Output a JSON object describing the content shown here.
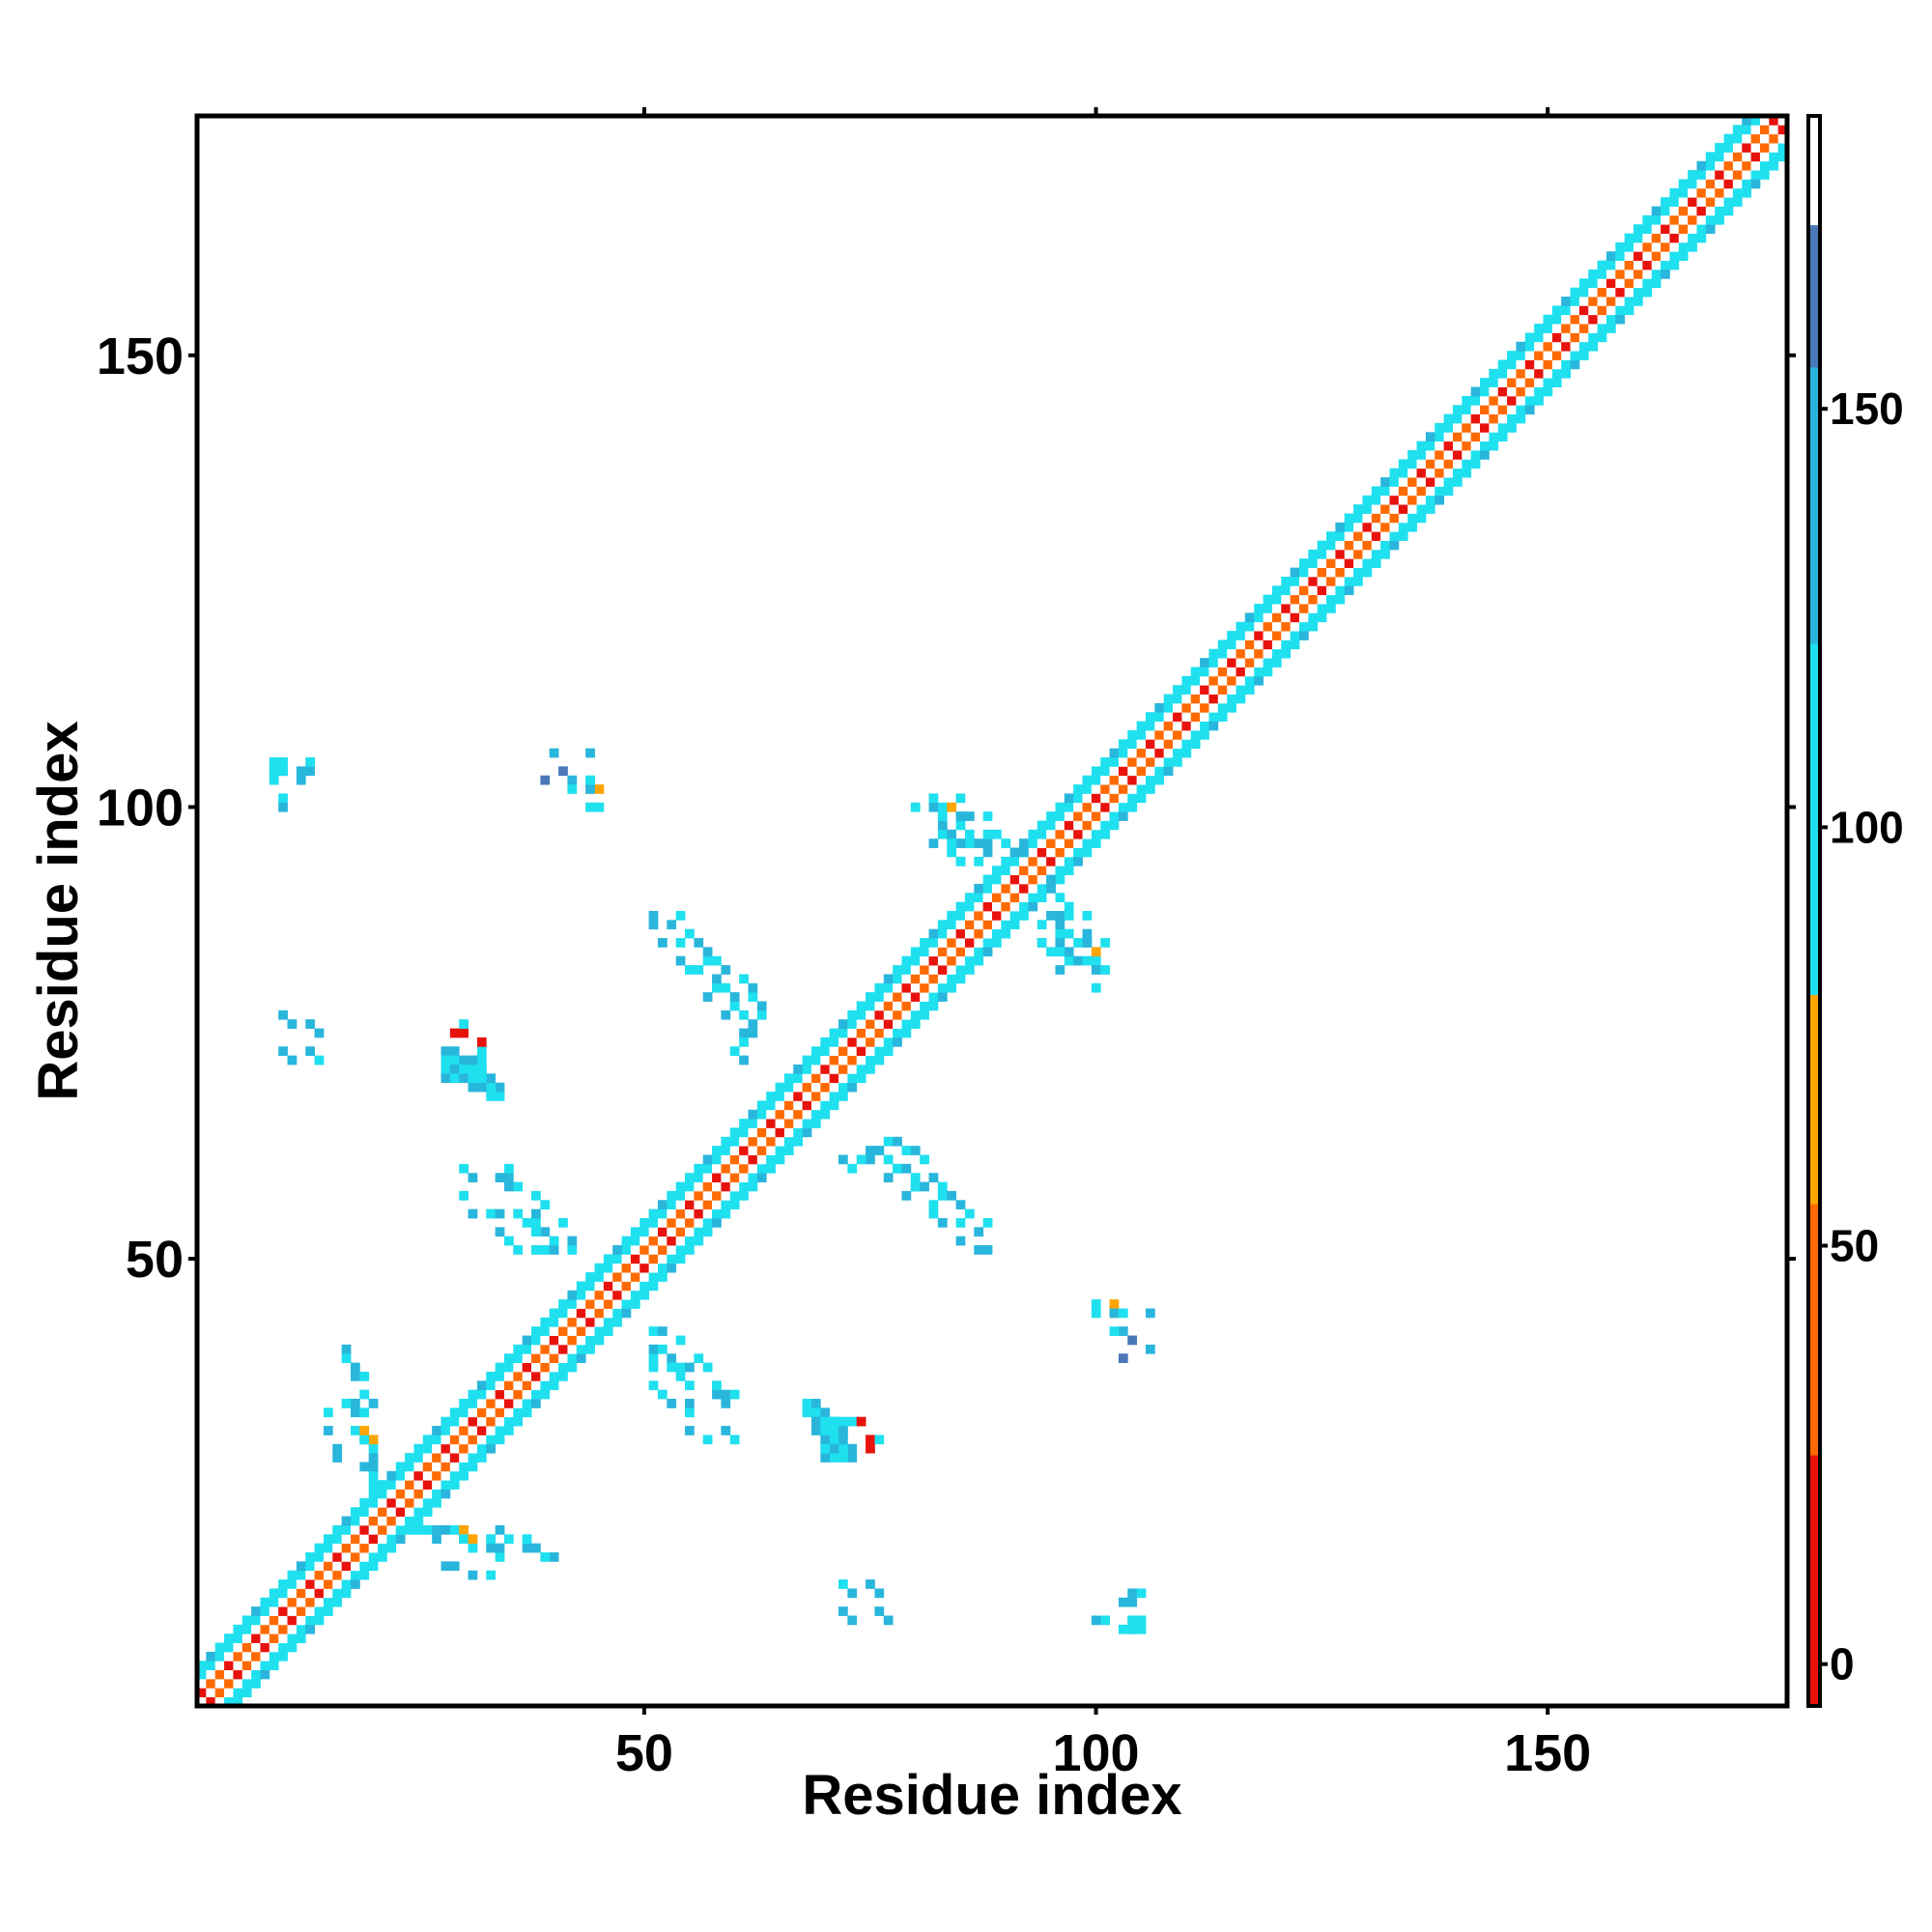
{
  "chart_data": {
    "type": "heatmap",
    "title": "",
    "xlabel": "Residue index",
    "ylabel": "Residue index",
    "xlim": [
      1,
      176
    ],
    "ylim": [
      1,
      176
    ],
    "xticks": [
      50,
      100,
      150
    ],
    "yticks": [
      50,
      100,
      150
    ],
    "xtick_labels": [
      "50",
      "100",
      "150"
    ],
    "ytick_labels": [
      "50",
      "100",
      "150"
    ],
    "grid": false,
    "legend": "none",
    "colorbar": {
      "position": "right",
      "range": [
        -5,
        185
      ],
      "ticks": [
        0,
        50,
        100,
        150
      ],
      "tick_labels": [
        "0",
        "50",
        "100",
        "150"
      ],
      "bins": [
        {
          "from": -5,
          "to": 25,
          "color": "#e8120c"
        },
        {
          "from": 25,
          "to": 55,
          "color": "#ff6a00"
        },
        {
          "from": 55,
          "to": 80,
          "color": "#ffa500"
        },
        {
          "from": 80,
          "to": 122,
          "color": "#1fe0ee"
        },
        {
          "from": 122,
          "to": 155,
          "color": "#29b6dc"
        },
        {
          "from": 155,
          "to": 172,
          "color": "#4a78b8"
        },
        {
          "from": 172,
          "to": 185,
          "color": "#ffffff"
        }
      ]
    },
    "description_of_values": "contact map cells colored by value",
    "diagonal_band": {
      "half_width": 4,
      "from": 1,
      "to": 176
    },
    "off_diagonal_cells": [
      {
        "x": 9,
        "y": 104,
        "v": 100
      },
      {
        "x": 10,
        "y": 104,
        "v": 140
      },
      {
        "x": 9,
        "y": 103,
        "v": 100
      },
      {
        "x": 12,
        "y": 104,
        "v": 140
      },
      {
        "x": 12,
        "y": 103,
        "v": 140
      },
      {
        "x": 10,
        "y": 101,
        "v": 100
      },
      {
        "x": 40,
        "y": 106,
        "v": 140
      },
      {
        "x": 39,
        "y": 103,
        "v": 160
      },
      {
        "x": 42,
        "y": 103,
        "v": 140
      },
      {
        "x": 42,
        "y": 102,
        "v": 100
      },
      {
        "x": 44,
        "y": 102,
        "v": 65
      },
      {
        "x": 44,
        "y": 100,
        "v": 100
      },
      {
        "x": 10,
        "y": 77,
        "v": 140
      },
      {
        "x": 13,
        "y": 76,
        "v": 140
      },
      {
        "x": 10,
        "y": 73,
        "v": 140
      },
      {
        "x": 13,
        "y": 73,
        "v": 140
      },
      {
        "x": 29,
        "y": 75,
        "v": 10
      },
      {
        "x": 30,
        "y": 75,
        "v": 10
      },
      {
        "x": 30,
        "y": 76,
        "v": 100
      },
      {
        "x": 28,
        "y": 73,
        "v": 140
      },
      {
        "x": 29,
        "y": 73,
        "v": 140
      },
      {
        "x": 28,
        "y": 72,
        "v": 100
      },
      {
        "x": 29,
        "y": 72,
        "v": 100
      },
      {
        "x": 30,
        "y": 72,
        "v": 140
      },
      {
        "x": 31,
        "y": 72,
        "v": 100
      },
      {
        "x": 28,
        "y": 71,
        "v": 100
      },
      {
        "x": 29,
        "y": 71,
        "v": 140
      },
      {
        "x": 30,
        "y": 71,
        "v": 100
      },
      {
        "x": 31,
        "y": 71,
        "v": 100
      },
      {
        "x": 32,
        "y": 71,
        "v": 140
      },
      {
        "x": 28,
        "y": 70,
        "v": 140
      },
      {
        "x": 29,
        "y": 70,
        "v": 100
      },
      {
        "x": 30,
        "y": 70,
        "v": 140
      },
      {
        "x": 32,
        "y": 70,
        "v": 100
      },
      {
        "x": 31,
        "y": 69,
        "v": 140
      },
      {
        "x": 32,
        "y": 69,
        "v": 140
      },
      {
        "x": 30,
        "y": 60,
        "v": 100
      },
      {
        "x": 31,
        "y": 59,
        "v": 140
      },
      {
        "x": 34,
        "y": 59,
        "v": 140
      },
      {
        "x": 35,
        "y": 59,
        "v": 140
      },
      {
        "x": 30,
        "y": 57,
        "v": 100
      },
      {
        "x": 31,
        "y": 55,
        "v": 140
      },
      {
        "x": 33,
        "y": 55,
        "v": 100
      },
      {
        "x": 34,
        "y": 55,
        "v": 140
      },
      {
        "x": 37,
        "y": 54,
        "v": 100
      },
      {
        "x": 34,
        "y": 53,
        "v": 140
      },
      {
        "x": 35,
        "y": 52,
        "v": 100
      },
      {
        "x": 36,
        "y": 51,
        "v": 100
      },
      {
        "x": 38,
        "y": 51,
        "v": 100
      },
      {
        "x": 39,
        "y": 51,
        "v": 100
      },
      {
        "x": 53,
        "y": 87,
        "v": 140
      },
      {
        "x": 54,
        "y": 85,
        "v": 100
      },
      {
        "x": 58,
        "y": 83,
        "v": 100
      },
      {
        "x": 55,
        "y": 82,
        "v": 100
      },
      {
        "x": 56,
        "y": 82,
        "v": 100
      },
      {
        "x": 54,
        "y": 83,
        "v": 140
      },
      {
        "x": 58,
        "y": 80,
        "v": 140
      },
      {
        "x": 59,
        "y": 80,
        "v": 100
      },
      {
        "x": 57,
        "y": 79,
        "v": 140
      },
      {
        "x": 60,
        "y": 78,
        "v": 100
      },
      {
        "x": 59,
        "y": 77,
        "v": 140
      },
      {
        "x": 61,
        "y": 77,
        "v": 100
      },
      {
        "x": 62,
        "y": 76,
        "v": 140
      },
      {
        "x": 61,
        "y": 75,
        "v": 140
      },
      {
        "x": 62,
        "y": 75,
        "v": 140
      },
      {
        "x": 61,
        "y": 74,
        "v": 100
      },
      {
        "x": 77,
        "y": 63,
        "v": 100
      },
      {
        "x": 78,
        "y": 63,
        "v": 140
      },
      {
        "x": 79,
        "y": 62,
        "v": 100
      },
      {
        "x": 80,
        "y": 62,
        "v": 140
      },
      {
        "x": 81,
        "y": 61,
        "v": 100
      },
      {
        "x": 78,
        "y": 60,
        "v": 100
      },
      {
        "x": 79,
        "y": 60,
        "v": 140
      },
      {
        "x": 82,
        "y": 59,
        "v": 140
      },
      {
        "x": 80,
        "y": 58,
        "v": 100
      },
      {
        "x": 81,
        "y": 58,
        "v": 140
      },
      {
        "x": 83,
        "y": 57,
        "v": 100
      },
      {
        "x": 84,
        "y": 57,
        "v": 140
      },
      {
        "x": 85,
        "y": 56,
        "v": 140
      },
      {
        "x": 86,
        "y": 55,
        "v": 100
      },
      {
        "x": 85,
        "y": 52,
        "v": 140
      },
      {
        "x": 87,
        "y": 51,
        "v": 140
      },
      {
        "x": 88,
        "y": 51,
        "v": 140
      },
      {
        "x": 88,
        "y": 54,
        "v": 100
      },
      {
        "x": 72,
        "y": 61,
        "v": 140
      },
      {
        "x": 73,
        "y": 60,
        "v": 100
      },
      {
        "x": 83,
        "y": 100,
        "v": 100
      },
      {
        "x": 84,
        "y": 100,
        "v": 65
      },
      {
        "x": 85,
        "y": 99,
        "v": 100
      },
      {
        "x": 86,
        "y": 99,
        "v": 140
      },
      {
        "x": 83,
        "y": 97,
        "v": 100
      },
      {
        "x": 84,
        "y": 97,
        "v": 140
      },
      {
        "x": 85,
        "y": 96,
        "v": 100
      },
      {
        "x": 86,
        "y": 96,
        "v": 100
      },
      {
        "x": 88,
        "y": 96,
        "v": 140
      },
      {
        "x": 90,
        "y": 96,
        "v": 100
      },
      {
        "x": 84,
        "y": 95,
        "v": 100
      },
      {
        "x": 87,
        "y": 94,
        "v": 100
      },
      {
        "x": 91,
        "y": 95,
        "v": 140
      },
      {
        "x": 92,
        "y": 95,
        "v": 140
      },
      {
        "x": 85,
        "y": 94,
        "v": 140
      },
      {
        "x": 89,
        "y": 97,
        "v": 100
      },
      {
        "x": 95,
        "y": 88,
        "v": 140
      },
      {
        "x": 97,
        "y": 88,
        "v": 100
      },
      {
        "x": 99,
        "y": 88,
        "v": 100
      },
      {
        "x": 96,
        "y": 87,
        "v": 140
      },
      {
        "x": 97,
        "y": 86,
        "v": 100
      },
      {
        "x": 94,
        "y": 85,
        "v": 100
      },
      {
        "x": 96,
        "y": 85,
        "v": 140
      },
      {
        "x": 98,
        "y": 85,
        "v": 100
      },
      {
        "x": 99,
        "y": 85,
        "v": 140
      },
      {
        "x": 101,
        "y": 85,
        "v": 100
      },
      {
        "x": 96,
        "y": 84,
        "v": 100
      },
      {
        "x": 98,
        "y": 83,
        "v": 140
      },
      {
        "x": 99,
        "y": 83,
        "v": 100
      },
      {
        "x": 100,
        "y": 82,
        "v": 140
      },
      {
        "x": 96,
        "y": 82,
        "v": 140
      },
      {
        "x": 101,
        "y": 82,
        "v": 100
      },
      {
        "x": 100,
        "y": 80,
        "v": 100
      },
      {
        "x": 17,
        "y": 40,
        "v": 140
      },
      {
        "x": 17,
        "y": 39,
        "v": 100
      },
      {
        "x": 18,
        "y": 37,
        "v": 140
      },
      {
        "x": 19,
        "y": 37,
        "v": 100
      },
      {
        "x": 17,
        "y": 34,
        "v": 100
      },
      {
        "x": 18,
        "y": 33,
        "v": 140
      },
      {
        "x": 19,
        "y": 33,
        "v": 100
      },
      {
        "x": 15,
        "y": 33,
        "v": 100
      },
      {
        "x": 15,
        "y": 31,
        "v": 140
      },
      {
        "x": 18,
        "y": 31,
        "v": 100
      },
      {
        "x": 19,
        "y": 30,
        "v": 140
      },
      {
        "x": 25,
        "y": 20,
        "v": 100
      },
      {
        "x": 26,
        "y": 20,
        "v": 100
      },
      {
        "x": 27,
        "y": 20,
        "v": 140
      },
      {
        "x": 28,
        "y": 20,
        "v": 140
      },
      {
        "x": 29,
        "y": 20,
        "v": 100
      },
      {
        "x": 30,
        "y": 20,
        "v": 65
      },
      {
        "x": 30,
        "y": 19,
        "v": 100
      },
      {
        "x": 31,
        "y": 19,
        "v": 65
      },
      {
        "x": 27,
        "y": 19,
        "v": 140
      },
      {
        "x": 34,
        "y": 20,
        "v": 140
      },
      {
        "x": 35,
        "y": 19,
        "v": 100
      },
      {
        "x": 34,
        "y": 18,
        "v": 140
      },
      {
        "x": 38,
        "y": 18,
        "v": 140
      },
      {
        "x": 28,
        "y": 16,
        "v": 140
      },
      {
        "x": 29,
        "y": 16,
        "v": 140
      },
      {
        "x": 51,
        "y": 42,
        "v": 100
      },
      {
        "x": 52,
        "y": 42,
        "v": 140
      },
      {
        "x": 54,
        "y": 41,
        "v": 100
      },
      {
        "x": 51,
        "y": 40,
        "v": 140
      },
      {
        "x": 52,
        "y": 40,
        "v": 100
      },
      {
        "x": 53,
        "y": 39,
        "v": 140
      },
      {
        "x": 56,
        "y": 39,
        "v": 100
      },
      {
        "x": 53,
        "y": 38,
        "v": 100
      },
      {
        "x": 54,
        "y": 38,
        "v": 100
      },
      {
        "x": 55,
        "y": 38,
        "v": 140
      },
      {
        "x": 57,
        "y": 38,
        "v": 100
      },
      {
        "x": 55,
        "y": 36,
        "v": 100
      },
      {
        "x": 58,
        "y": 36,
        "v": 100
      },
      {
        "x": 60,
        "y": 35,
        "v": 100
      },
      {
        "x": 58,
        "y": 35,
        "v": 140
      },
      {
        "x": 68,
        "y": 34,
        "v": 100
      },
      {
        "x": 69,
        "y": 34,
        "v": 140
      },
      {
        "x": 68,
        "y": 33,
        "v": 100
      },
      {
        "x": 69,
        "y": 33,
        "v": 100
      },
      {
        "x": 70,
        "y": 33,
        "v": 140
      },
      {
        "x": 69,
        "y": 32,
        "v": 140
      },
      {
        "x": 70,
        "y": 32,
        "v": 100
      },
      {
        "x": 71,
        "y": 32,
        "v": 100
      },
      {
        "x": 72,
        "y": 32,
        "v": 100
      },
      {
        "x": 70,
        "y": 31,
        "v": 100
      },
      {
        "x": 71,
        "y": 31,
        "v": 100
      },
      {
        "x": 72,
        "y": 31,
        "v": 140
      },
      {
        "x": 73,
        "y": 32,
        "v": 100
      },
      {
        "x": 74,
        "y": 32,
        "v": 10
      },
      {
        "x": 72,
        "y": 14,
        "v": 100
      },
      {
        "x": 75,
        "y": 14,
        "v": 140
      },
      {
        "x": 72,
        "y": 11,
        "v": 140
      },
      {
        "x": 76,
        "y": 11,
        "v": 140
      },
      {
        "x": 104,
        "y": 13,
        "v": 140
      },
      {
        "x": 105,
        "y": 13,
        "v": 100
      },
      {
        "x": 100,
        "y": 10,
        "v": 140
      },
      {
        "x": 104,
        "y": 10,
        "v": 100
      },
      {
        "x": 105,
        "y": 10,
        "v": 100
      },
      {
        "x": 104,
        "y": 9,
        "v": 100
      },
      {
        "x": 105,
        "y": 9,
        "v": 100
      },
      {
        "x": 100,
        "y": 45,
        "v": 100
      },
      {
        "x": 102,
        "y": 45,
        "v": 65
      },
      {
        "x": 102,
        "y": 44,
        "v": 140
      },
      {
        "x": 103,
        "y": 44,
        "v": 100
      },
      {
        "x": 106,
        "y": 44,
        "v": 140
      },
      {
        "x": 104,
        "y": 41,
        "v": 160
      }
    ]
  }
}
